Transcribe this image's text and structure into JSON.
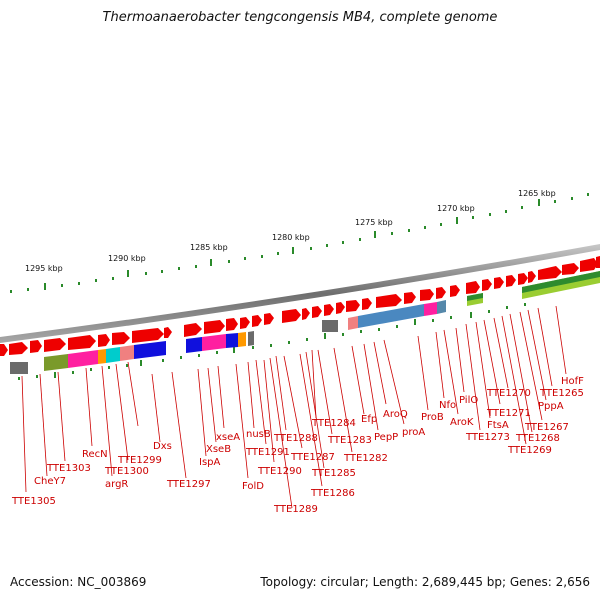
{
  "title": "Thermoanaerobacter tengcongensis MB4, complete genome",
  "footer": {
    "accession": "Accession: NC_003869",
    "summary": "Topology: circular; Length: 2,689,445 bp; Genes: 2,656"
  },
  "colors": {
    "forward_gene": "#ee0000",
    "backbone": "#8a8a8a",
    "label": "#cc0000",
    "ticks": "#2a8a2a"
  },
  "scale_labels": [
    "1265 kbp",
    "1270 kbp",
    "1275 kbp",
    "1280 kbp",
    "1285 kbp",
    "1290 kbp",
    "1295 kbp"
  ],
  "gene_labels": [
    "TTE1305",
    "CheY7",
    "TTE1303",
    "RecN",
    "argR",
    "TTE1300",
    "TTE1299",
    "Dxs",
    "TTE1297",
    "IspA",
    "XseB",
    "xseA",
    "FolD",
    "nusB",
    "TTE1291",
    "TTE1290",
    "TTE1289",
    "TTE1288",
    "TTE1287",
    "TTE1286",
    "TTE1285",
    "TTE1284",
    "TTE1283",
    "TTE1282",
    "Efp",
    "PepP",
    "AroQ",
    "proA",
    "ProB",
    "Nfo",
    "AroK",
    "PilO",
    "TTE1273",
    "FtsA",
    "TTE1271",
    "TTE1270",
    "TTE1269",
    "TTE1268",
    "TTE1267",
    "PppA",
    "TTE1265",
    "HofF"
  ]
}
